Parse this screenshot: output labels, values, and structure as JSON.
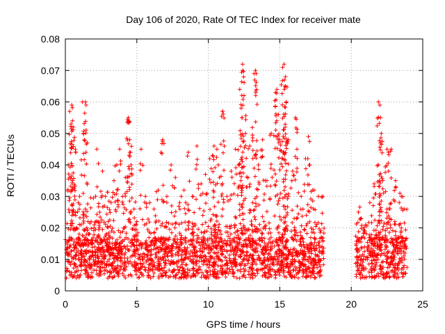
{
  "chart_data": {
    "type": "scatter",
    "title": "Day 106 of 2020, Rate Of TEC Index for receiver mate",
    "xlabel": "GPS time / hours",
    "ylabel": "ROTI / TECUs",
    "xlim": [
      0,
      25
    ],
    "ylim": [
      0,
      0.08
    ],
    "x_ticks": [
      0,
      5,
      10,
      15,
      20,
      25
    ],
    "y_ticks": [
      0,
      0.01,
      0.02,
      0.03,
      0.04,
      0.05,
      0.06,
      0.07,
      0.08
    ],
    "x_tick_labels": [
      "0",
      "5",
      "10",
      "15",
      "20",
      "25"
    ],
    "y_tick_labels": [
      "0",
      "0.01",
      "0.02",
      "0.03",
      "0.04",
      "0.05",
      "0.06",
      "0.07",
      "0.08"
    ],
    "grid": true,
    "marker": "+",
    "marker_color": "#ff0000",
    "data_gaps_hours": [
      [
        18.1,
        20.3
      ],
      [
        23.9,
        25
      ]
    ],
    "series": [
      {
        "x": [
          0.1,
          0.2,
          0.3,
          0.4,
          0.5,
          0.6,
          0.7,
          0.8,
          0.9,
          1.0,
          1.2,
          1.4,
          1.6,
          1.8,
          2.0,
          2.2,
          2.4,
          2.6,
          2.8,
          3.0,
          3.2,
          3.4,
          3.6,
          3.8,
          4.0,
          4.2,
          4.4,
          4.6,
          4.8,
          5.0,
          5.3,
          5.6,
          5.9,
          6.2,
          6.5,
          6.8,
          7.1,
          7.4,
          7.7,
          8.0,
          8.3,
          8.6,
          8.9,
          9.2,
          9.5,
          9.8,
          10.1,
          10.4,
          10.7,
          11.0,
          11.3,
          11.6,
          11.9,
          12.2,
          12.4,
          12.6,
          12.9,
          13.2,
          13.5,
          13.8,
          14.1,
          14.4,
          14.7,
          15.0,
          15.2,
          15.4,
          15.6,
          15.9,
          16.2,
          16.5,
          16.8,
          17.1,
          17.4,
          17.7,
          18.0,
          0.45,
          0.5,
          0.55,
          1.4,
          1.45,
          4.4,
          4.5,
          4.55,
          10.3,
          10.6,
          11.0,
          12.3,
          12.35,
          12.4,
          12.5,
          13.3,
          13.35,
          14.8,
          14.9,
          15.3,
          15.4,
          15.45,
          16.1,
          17.0,
          17.3,
          20.5,
          20.7,
          21.0,
          21.3,
          21.6,
          21.9,
          22.2,
          22.5,
          22.8,
          23.1,
          23.4,
          23.7,
          21.9,
          22.0,
          22.05,
          22.1,
          22.5,
          22.6,
          23.5
        ],
        "y": [
          0.012,
          0.04,
          0.057,
          0.053,
          0.035,
          0.025,
          0.045,
          0.02,
          0.028,
          0.03,
          0.06,
          0.026,
          0.018,
          0.022,
          0.02,
          0.045,
          0.025,
          0.038,
          0.03,
          0.022,
          0.028,
          0.035,
          0.04,
          0.045,
          0.03,
          0.036,
          0.055,
          0.04,
          0.026,
          0.022,
          0.045,
          0.03,
          0.028,
          0.026,
          0.032,
          0.048,
          0.03,
          0.04,
          0.036,
          0.028,
          0.032,
          0.044,
          0.03,
          0.046,
          0.034,
          0.037,
          0.042,
          0.046,
          0.04,
          0.057,
          0.03,
          0.038,
          0.045,
          0.064,
          0.072,
          0.05,
          0.046,
          0.069,
          0.04,
          0.048,
          0.035,
          0.05,
          0.063,
          0.048,
          0.071,
          0.068,
          0.048,
          0.038,
          0.045,
          0.03,
          0.042,
          0.04,
          0.032,
          0.03,
          0.03,
          0.059,
          0.054,
          0.052,
          0.06,
          0.059,
          0.054,
          0.048,
          0.044,
          0.043,
          0.045,
          0.057,
          0.058,
          0.055,
          0.07,
          0.062,
          0.07,
          0.069,
          0.064,
          0.056,
          0.072,
          0.065,
          0.06,
          0.055,
          0.049,
          0.032,
          0.025,
          0.023,
          0.021,
          0.028,
          0.034,
          0.04,
          0.035,
          0.026,
          0.045,
          0.035,
          0.031,
          0.026,
          0.06,
          0.059,
          0.055,
          0.05,
          0.045,
          0.044,
          0.03
        ],
        "bulk_note": "dense band of points 0.003-0.02 from 0 to 18.1 h and 20.3 to 23.9 h"
      }
    ]
  }
}
